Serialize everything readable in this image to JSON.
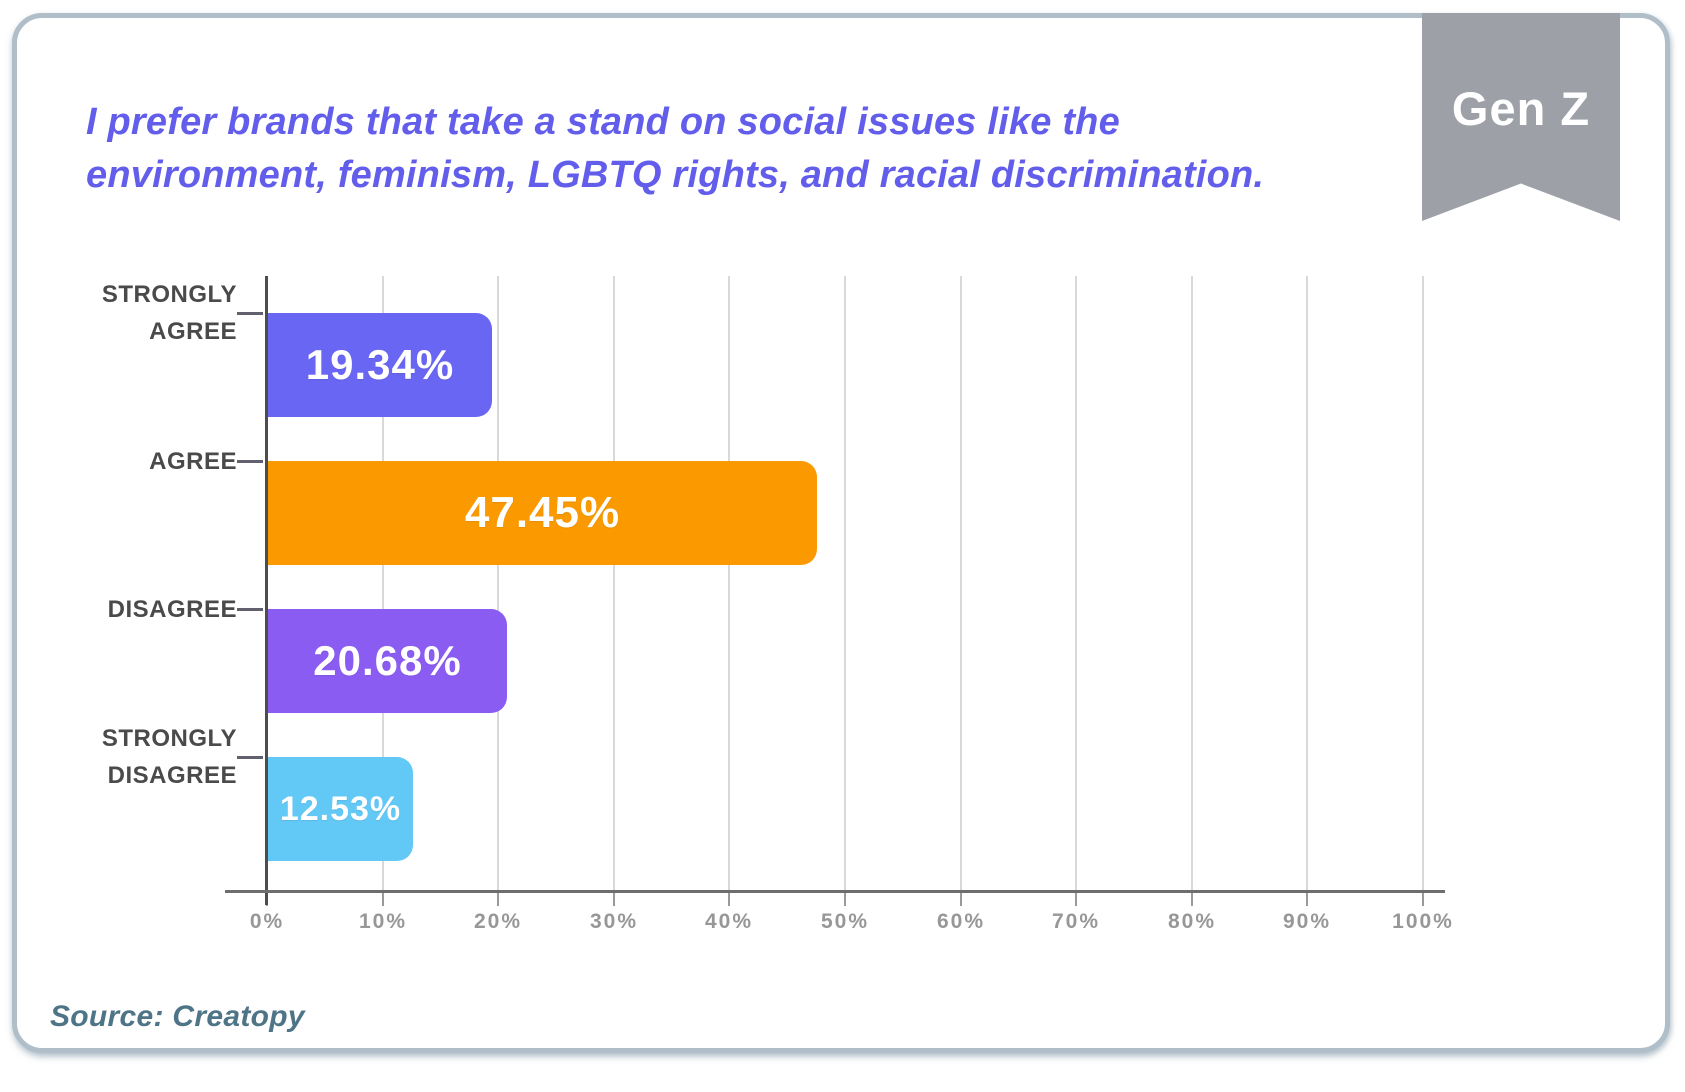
{
  "ribbon": {
    "label": "Gen Z",
    "color": "#9da1a7"
  },
  "title": {
    "text": "I prefer brands that take a stand on social issues like the environment, feminism, LGBTQ rights, and racial discrimination.",
    "lines": [
      "I prefer brands that take a stand on social issues like the",
      "environment, feminism, LGBTQ rights, and racial discrimination."
    ],
    "color": "#625eeb"
  },
  "source": {
    "text": "Source: Creatopy"
  },
  "chart_data": {
    "type": "bar",
    "orientation": "horizontal",
    "title": "I prefer brands that take a stand on social issues like the environment, feminism, LGBTQ rights, and racial discrimination.",
    "categories": [
      "STRONGLY AGREE",
      "AGREE",
      "DISAGREE",
      "STRONGLY DISAGREE"
    ],
    "category_lines": [
      [
        "STRONGLY",
        "AGREE"
      ],
      [
        "AGREE"
      ],
      [
        "DISAGREE"
      ],
      [
        "STRONGLY",
        "DISAGREE"
      ]
    ],
    "values": [
      19.34,
      47.45,
      20.68,
      12.53
    ],
    "value_labels": [
      "19.34%",
      "47.45%",
      "20.68%",
      "12.53%"
    ],
    "bar_colors": [
      "#6966f3",
      "#fa9a00",
      "#8b5cf2",
      "#62c8f6"
    ],
    "xlabel": "",
    "ylabel": "",
    "xlim": [
      0,
      100
    ],
    "x_tick_labels": [
      "0%",
      "10%",
      "20%",
      "30%",
      "40%",
      "50%",
      "60%",
      "70%",
      "80%",
      "90%",
      "100%"
    ],
    "grid": true,
    "legend": false
  }
}
